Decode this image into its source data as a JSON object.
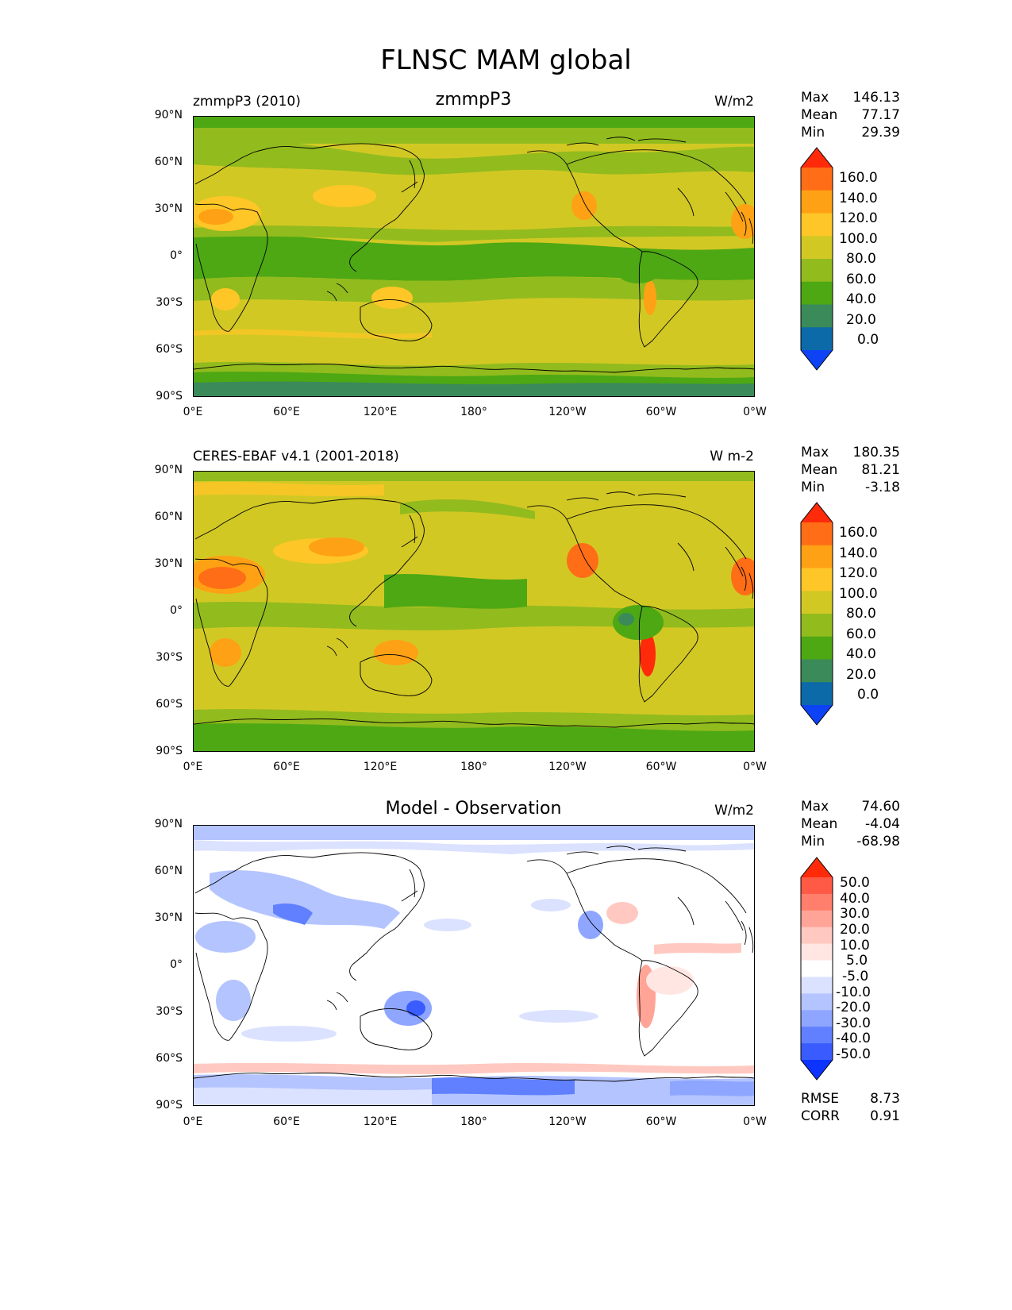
{
  "title": "FLNSC MAM global",
  "panels": [
    {
      "id": "model",
      "left_label": "zmmpP3 (2010)",
      "center_title": "zmmpP3",
      "units": "W/m2",
      "stats": [
        {
          "k": "Max",
          "v": "146.13"
        },
        {
          "k": "Mean",
          "v": "77.17"
        },
        {
          "k": "Min",
          "v": "29.39"
        }
      ],
      "colorbar": {
        "labels": [
          "160.0",
          "140.0",
          "120.0",
          "100.0",
          "80.0",
          "60.0",
          "40.0",
          "20.0",
          "0.0"
        ],
        "colors": [
          "#ff2a0a",
          "#ff6d17",
          "#ffa114",
          "#ffc627",
          "#d2c824",
          "#92bb1e",
          "#4da813",
          "#3b8a5a",
          "#0c6aa8",
          "#0d43f5"
        ]
      }
    },
    {
      "id": "obs",
      "left_label": "CERES-EBAF v4.1 (2001-2018)",
      "center_title": "",
      "units": "W m-2",
      "stats": [
        {
          "k": "Max",
          "v": "180.35"
        },
        {
          "k": "Mean",
          "v": "81.21"
        },
        {
          "k": "Min",
          "v": "-3.18"
        }
      ],
      "colorbar": {
        "labels": [
          "160.0",
          "140.0",
          "120.0",
          "100.0",
          "80.0",
          "60.0",
          "40.0",
          "20.0",
          "0.0"
        ],
        "colors": [
          "#ff2a0a",
          "#ff6d17",
          "#ffa114",
          "#ffc627",
          "#d2c824",
          "#92bb1e",
          "#4da813",
          "#3b8a5a",
          "#0c6aa8",
          "#0d43f5"
        ]
      }
    },
    {
      "id": "diff",
      "left_label": "",
      "center_title": "Model - Observation",
      "units": "W/m2",
      "stats": [
        {
          "k": "Max",
          "v": "74.60"
        },
        {
          "k": "Mean",
          "v": "-4.04"
        },
        {
          "k": "Min",
          "v": "-68.98"
        }
      ],
      "extra_stats": [
        {
          "k": "RMSE",
          "v": "8.73"
        },
        {
          "k": "CORR",
          "v": "0.91"
        }
      ],
      "colorbar": {
        "labels": [
          "50.0",
          "40.0",
          "30.0",
          "20.0",
          "10.0",
          "5.0",
          "-5.0",
          "-10.0",
          "-20.0",
          "-30.0",
          "-40.0",
          "-50.0"
        ],
        "colors": [
          "#ff2a0a",
          "#ff5a45",
          "#ff7f6c",
          "#ffa497",
          "#ffc9c1",
          "#ffe6e2",
          "#ffffff",
          "#dbe2ff",
          "#b4c4ff",
          "#8ea6ff",
          "#6080ff",
          "#3a5cff",
          "#0d33ff"
        ]
      }
    }
  ],
  "axes": {
    "x_ticks": [
      "0°E",
      "60°E",
      "120°E",
      "180°",
      "120°W",
      "60°W",
      "0°W"
    ],
    "y_ticks": [
      "90°N",
      "60°N",
      "30°N",
      "0°",
      "30°S",
      "60°S",
      "90°S"
    ]
  }
}
